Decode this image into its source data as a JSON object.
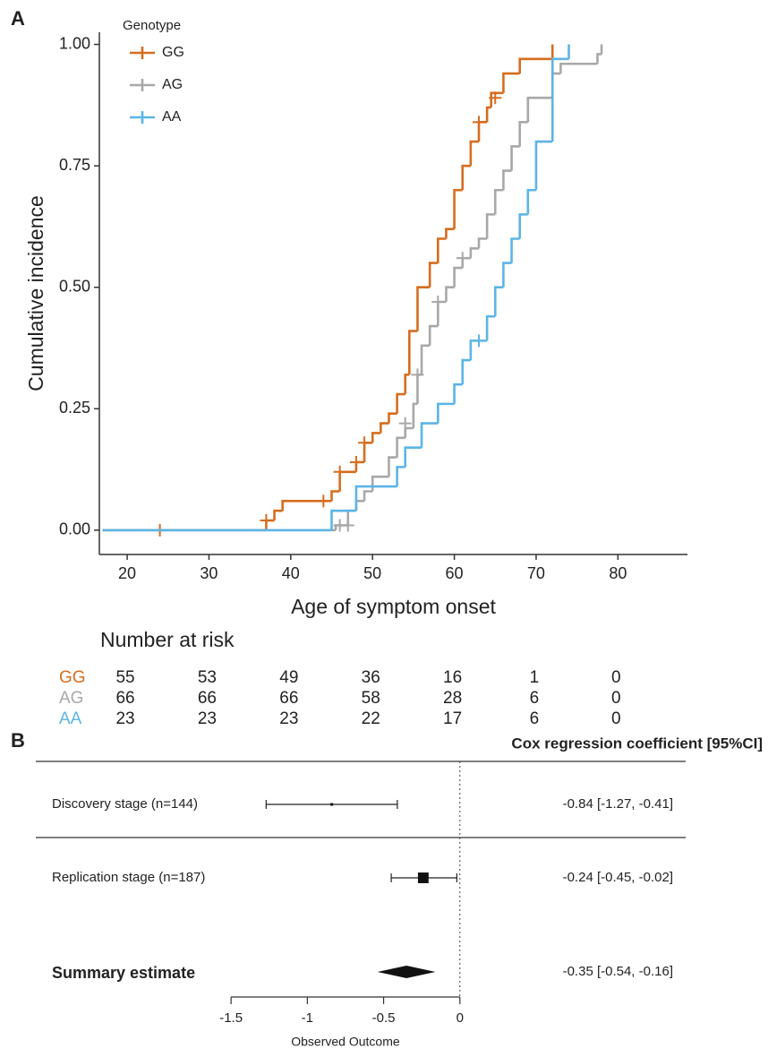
{
  "chart_data": [
    {
      "type": "step",
      "panel": "A",
      "x_label": "Age of symptom onset",
      "y_label": "Cumulative incidence",
      "xlim": [
        16.6,
        88.5
      ],
      "ylim": [
        -0.05,
        1.025
      ],
      "xticks": [
        20,
        30,
        40,
        50,
        60,
        70,
        80
      ],
      "yticks": [
        {
          "value": 0,
          "label": "0.00"
        },
        {
          "value": 0.25,
          "label": "0.25"
        },
        {
          "value": 0.5,
          "label": "0.50"
        },
        {
          "value": 0.75,
          "label": "0.75"
        },
        {
          "value": 1,
          "label": "1.00"
        }
      ],
      "legend": {
        "title": "Genotype",
        "position": "top-left"
      },
      "series": [
        {
          "name": "GG",
          "color": "#d66d1f",
          "x": [
            17,
            37,
            38,
            39,
            45,
            46,
            48,
            49,
            50,
            51,
            52,
            53,
            54,
            54.5,
            55.5,
            57,
            58,
            59,
            60,
            61,
            62,
            63,
            64,
            64.5,
            66,
            68,
            72
          ],
          "values": [
            0,
            0.02,
            0.04,
            0.06,
            0.08,
            0.12,
            0.14,
            0.18,
            0.2,
            0.22,
            0.24,
            0.28,
            0.32,
            0.41,
            0.5,
            0.55,
            0.6,
            0.62,
            0.7,
            0.75,
            0.8,
            0.84,
            0.87,
            0.9,
            0.94,
            0.97,
            1
          ],
          "censor_x": [
            24,
            37,
            44,
            46,
            48,
            49,
            63,
            65
          ],
          "censor_values": [
            0,
            0.02,
            0.06,
            0.12,
            0.14,
            0.18,
            0.84,
            0.89
          ]
        },
        {
          "name": "AG",
          "color": "#a8a8a8",
          "x": [
            17,
            45.5,
            47,
            48,
            49,
            50,
            52,
            53,
            54,
            55,
            55.5,
            56,
            57,
            58,
            59,
            60,
            61,
            62,
            63,
            64,
            65,
            66,
            67,
            68,
            69,
            72,
            73,
            77.5,
            78
          ],
          "values": [
            0,
            0.01,
            0.04,
            0.06,
            0.08,
            0.11,
            0.15,
            0.19,
            0.21,
            0.26,
            0.32,
            0.38,
            0.42,
            0.47,
            0.5,
            0.54,
            0.56,
            0.58,
            0.6,
            0.65,
            0.7,
            0.74,
            0.79,
            0.84,
            0.89,
            0.94,
            0.96,
            0.98,
            1
          ],
          "censor_x": [
            46,
            47,
            54,
            55.5,
            58,
            61
          ],
          "censor_values": [
            0.01,
            0.01,
            0.22,
            0.32,
            0.47,
            0.56
          ]
        },
        {
          "name": "AA",
          "color": "#5bb5e6",
          "x": [
            17,
            45,
            48,
            53,
            54,
            56,
            58,
            60,
            61,
            62,
            64,
            65,
            66,
            67,
            68,
            69,
            70,
            72,
            74
          ],
          "values": [
            0,
            0.04,
            0.09,
            0.13,
            0.17,
            0.22,
            0.26,
            0.3,
            0.35,
            0.39,
            0.44,
            0.5,
            0.55,
            0.6,
            0.65,
            0.7,
            0.8,
            0.97,
            1
          ],
          "censor_x": [
            63
          ],
          "censor_values": [
            0.39
          ]
        }
      ],
      "risk_table": {
        "title": "Number at risk",
        "rows": [
          {
            "name": "GG",
            "color": "#d66d1f",
            "values": [
              55,
              53,
              49,
              36,
              16,
              1,
              0
            ]
          },
          {
            "name": "AG",
            "color": "#a8a8a8",
            "values": [
              66,
              66,
              66,
              58,
              28,
              6,
              0
            ]
          },
          {
            "name": "AA",
            "color": "#5bb5e6",
            "values": [
              23,
              23,
              23,
              22,
              17,
              6,
              0
            ]
          }
        ]
      }
    },
    {
      "type": "forest",
      "panel": "B",
      "header": "Cox regression coefficient [95%CI]",
      "x_label": "Observed Outcome",
      "xlim": [
        -2.78,
        1.48
      ],
      "xticks": [
        -1.5,
        -1,
        -0.5,
        0
      ],
      "reference_line": 0,
      "studies": [
        {
          "label": "Discovery stage (n=144)",
          "estimate": -0.84,
          "lower": -1.27,
          "upper": -0.41,
          "ci_label": "-0.84 [-1.27, -0.41]"
        },
        {
          "label": "Replication stage (n=187)",
          "estimate": -0.24,
          "lower": -0.45,
          "upper": -0.02,
          "ci_label": "-0.24 [-0.45, -0.02]"
        }
      ],
      "summary": {
        "label": "Summary estimate",
        "estimate": -0.35,
        "lower": -0.54,
        "upper": -0.16,
        "ci_label": "-0.35 [-0.54, -0.16]"
      }
    }
  ]
}
